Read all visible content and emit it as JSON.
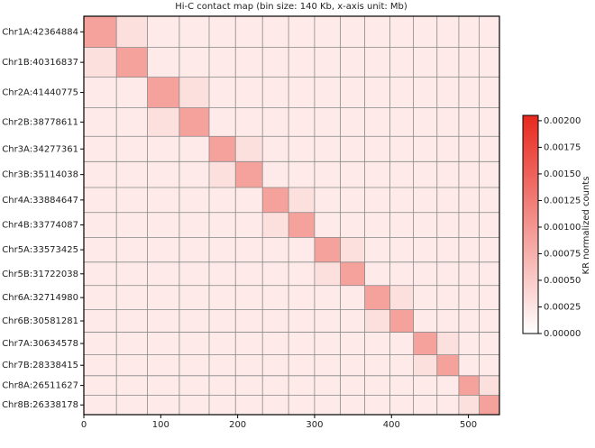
{
  "chart_data": {
    "type": "heatmap",
    "title": "Hi-C contact map (bin size: 140 Kb, x-axis unit: Mb)",
    "categories": [
      "Chr1A:42364884",
      "Chr1B:40316837",
      "Chr2A:41440775",
      "Chr2B:38778611",
      "Chr3A:34277361",
      "Chr3B:35114038",
      "Chr4A:33884647",
      "Chr4B:33774087",
      "Chr5A:33573425",
      "Chr5B:31722038",
      "Chr6A:32714980",
      "Chr6B:30581281",
      "Chr7A:30634578",
      "Chr7B:28338415",
      "Chr8A:26511627",
      "Chr8B:26338178"
    ],
    "xlim": [
      0,
      540.34
    ],
    "xticks": [
      0,
      100,
      200,
      300,
      400,
      500
    ],
    "colormap": [
      "#ffffff",
      "#e8281e"
    ],
    "colorbar_label": "KR normalized counts",
    "clim": [
      0,
      0.00205
    ],
    "cticks": [
      {
        "value": 0,
        "label": "0.00000"
      },
      {
        "value": 0.00025,
        "label": "0.00025"
      },
      {
        "value": 0.0005,
        "label": "0.00050"
      },
      {
        "value": 0.00075,
        "label": "0.00075"
      },
      {
        "value": 0.001,
        "label": "0.00100"
      },
      {
        "value": 0.00125,
        "label": "0.00125"
      },
      {
        "value": 0.0015,
        "label": "0.00150"
      },
      {
        "value": 0.00175,
        "label": "0.00175"
      },
      {
        "value": 0.002,
        "label": "0.00200"
      }
    ],
    "matrix": [
      [
        0.0009,
        0.0003,
        0.0002,
        0.0002,
        0.0002,
        0.0002,
        0.0002,
        0.0002,
        0.0002,
        0.0002,
        0.0002,
        0.0002,
        0.0002,
        0.0002,
        0.0002,
        0.0002
      ],
      [
        0.0003,
        0.0009,
        0.0002,
        0.0002,
        0.0002,
        0.0002,
        0.0002,
        0.0002,
        0.0002,
        0.0002,
        0.0002,
        0.0002,
        0.0002,
        0.0002,
        0.0002,
        0.0002
      ],
      [
        0.0002,
        0.0002,
        0.0009,
        0.0003,
        0.0002,
        0.0002,
        0.0002,
        0.0002,
        0.0002,
        0.0002,
        0.0002,
        0.0002,
        0.0002,
        0.0002,
        0.0002,
        0.0002
      ],
      [
        0.0002,
        0.0002,
        0.0003,
        0.0009,
        0.0002,
        0.0002,
        0.0002,
        0.0002,
        0.0002,
        0.0002,
        0.0002,
        0.0002,
        0.0002,
        0.0002,
        0.0002,
        0.0002
      ],
      [
        0.0002,
        0.0002,
        0.0002,
        0.0002,
        0.0009,
        0.0003,
        0.0002,
        0.0002,
        0.0002,
        0.0002,
        0.0002,
        0.0002,
        0.0002,
        0.0002,
        0.0002,
        0.0002
      ],
      [
        0.0002,
        0.0002,
        0.0002,
        0.0002,
        0.0003,
        0.0009,
        0.0002,
        0.0002,
        0.0002,
        0.0002,
        0.0002,
        0.0002,
        0.0002,
        0.0002,
        0.0002,
        0.0002
      ],
      [
        0.0002,
        0.0002,
        0.0002,
        0.0002,
        0.0002,
        0.0002,
        0.0009,
        0.0003,
        0.0002,
        0.0002,
        0.0002,
        0.0002,
        0.0002,
        0.0002,
        0.0002,
        0.0002
      ],
      [
        0.0002,
        0.0002,
        0.0002,
        0.0002,
        0.0002,
        0.0002,
        0.0003,
        0.0009,
        0.0002,
        0.0002,
        0.0002,
        0.0002,
        0.0002,
        0.0002,
        0.0002,
        0.0002
      ],
      [
        0.0002,
        0.0002,
        0.0002,
        0.0002,
        0.0002,
        0.0002,
        0.0002,
        0.0002,
        0.0009,
        0.0003,
        0.0002,
        0.0002,
        0.0002,
        0.0002,
        0.0002,
        0.0002
      ],
      [
        0.0002,
        0.0002,
        0.0002,
        0.0002,
        0.0002,
        0.0002,
        0.0002,
        0.0002,
        0.0003,
        0.0009,
        0.0002,
        0.0002,
        0.0002,
        0.0002,
        0.0002,
        0.0002
      ],
      [
        0.0002,
        0.0002,
        0.0002,
        0.0002,
        0.0002,
        0.0002,
        0.0002,
        0.0002,
        0.0002,
        0.0002,
        0.0009,
        0.0003,
        0.0002,
        0.0002,
        0.0002,
        0.0002
      ],
      [
        0.0002,
        0.0002,
        0.0002,
        0.0002,
        0.0002,
        0.0002,
        0.0002,
        0.0002,
        0.0002,
        0.0002,
        0.0003,
        0.0009,
        0.0002,
        0.0002,
        0.0002,
        0.0002
      ],
      [
        0.0002,
        0.0002,
        0.0002,
        0.0002,
        0.0002,
        0.0002,
        0.0002,
        0.0002,
        0.0002,
        0.0002,
        0.0002,
        0.0002,
        0.0009,
        0.0003,
        0.0002,
        0.0002
      ],
      [
        0.0002,
        0.0002,
        0.0002,
        0.0002,
        0.0002,
        0.0002,
        0.0002,
        0.0002,
        0.0002,
        0.0002,
        0.0002,
        0.0002,
        0.0003,
        0.0009,
        0.0002,
        0.0002
      ],
      [
        0.0002,
        0.0002,
        0.0002,
        0.0002,
        0.0002,
        0.0002,
        0.0002,
        0.0002,
        0.0002,
        0.0002,
        0.0002,
        0.0002,
        0.0002,
        0.0002,
        0.0009,
        0.0003
      ],
      [
        0.0002,
        0.0002,
        0.0002,
        0.0002,
        0.0002,
        0.0002,
        0.0002,
        0.0002,
        0.0002,
        0.0002,
        0.0002,
        0.0002,
        0.0002,
        0.0002,
        0.0003,
        0.0009
      ]
    ]
  }
}
